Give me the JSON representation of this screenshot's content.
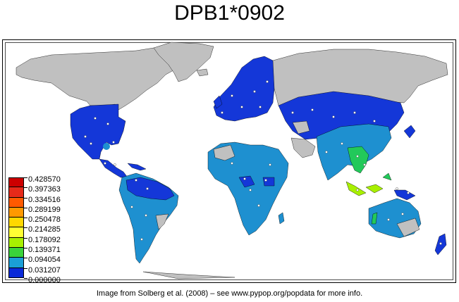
{
  "title": "DPB1*0902",
  "caption": "Image from Solberg et al. (2008) – see www.pypop.org/popdata for more info.",
  "legend": {
    "labels": [
      "0.428570",
      "0.397363",
      "0.334516",
      "0.289199",
      "0.250478",
      "0.214285",
      "0.178092",
      "0.139371",
      "0.094054",
      "0.031207",
      "0.000000"
    ],
    "colors": [
      "#cc0000",
      "#e62a1a",
      "#ff5a00",
      "#ff9900",
      "#ffd800",
      "#ffff33",
      "#a8f000",
      "#3ad33a",
      "#1a9fd6",
      "#0a2ad8"
    ]
  },
  "colors": {
    "no_data": "#c0c0c0",
    "low": "#1437d8",
    "mid_low": "#1e90d0",
    "mid": "#22c95a",
    "mid_high": "#b8f000",
    "sampling_point": "#ffffff"
  }
}
